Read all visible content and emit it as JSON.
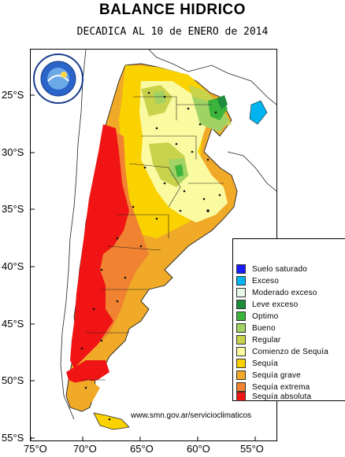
{
  "header": {
    "title": "BALANCE HIDRICO",
    "subtitle": "DECADICA AL 10 de ENERO de 2014"
  },
  "map": {
    "lat_labels": [
      "25°S",
      "30°S",
      "35°S",
      "40°S",
      "45°S",
      "50°S",
      "55°S"
    ],
    "lon_labels": [
      "75°O",
      "70°O",
      "65°O",
      "60°O",
      "55°O"
    ]
  },
  "legend": {
    "items": [
      {
        "label": "Suelo saturado",
        "color": "#1a1aff"
      },
      {
        "label": "Exceso",
        "color": "#00b4f0"
      },
      {
        "label": "Moderado exceso",
        "color": "#e6fae6"
      },
      {
        "label": "Leve exceso",
        "color": "#1e8c3c"
      },
      {
        "label": "Optimo",
        "color": "#3cb43c"
      },
      {
        "label": "Bueno",
        "color": "#a0d264"
      },
      {
        "label": "Regular",
        "color": "#c8d24b"
      },
      {
        "label": "Comienzo de Sequía",
        "color": "#fafaa0"
      },
      {
        "label": "Sequía",
        "color": "#fad200"
      },
      {
        "label": "Sequía grave",
        "color": "#f0aa28"
      },
      {
        "label": "Sequía extrema",
        "color": "#f08232"
      },
      {
        "label": "Sequía absoluta",
        "color": "#f01414"
      }
    ]
  },
  "footer": {
    "url": "www.smn.gov.ar/servicioclimaticos"
  },
  "logo": {
    "icon": "smn-logo-icon",
    "ring_text": "SERVICIO METEOROLOGICO NACIONAL · ARGENTINA"
  }
}
